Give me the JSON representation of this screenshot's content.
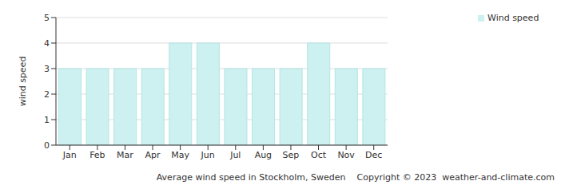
{
  "chart_data": {
    "type": "bar",
    "title": "Average wind speed in Stockholm, Sweden",
    "annotations": [
      "Copyright © 2023",
      "weather-and-climate.com"
    ],
    "y_label": "wind speed",
    "categories": [
      "Jan",
      "Feb",
      "Mar",
      "Apr",
      "May",
      "Jun",
      "Jul",
      "Aug",
      "Sep",
      "Oct",
      "Nov",
      "Dec"
    ],
    "series": [
      {
        "name": "Wind speed",
        "color": "#cdf0f0",
        "values": [
          3,
          3,
          3,
          3,
          4,
          4,
          3,
          3,
          3,
          4,
          3,
          3
        ]
      }
    ],
    "ylim": [
      0,
      5
    ],
    "yticks": [
      0,
      1,
      2,
      3,
      4,
      5
    ],
    "grid": true,
    "legend": "top-right"
  }
}
